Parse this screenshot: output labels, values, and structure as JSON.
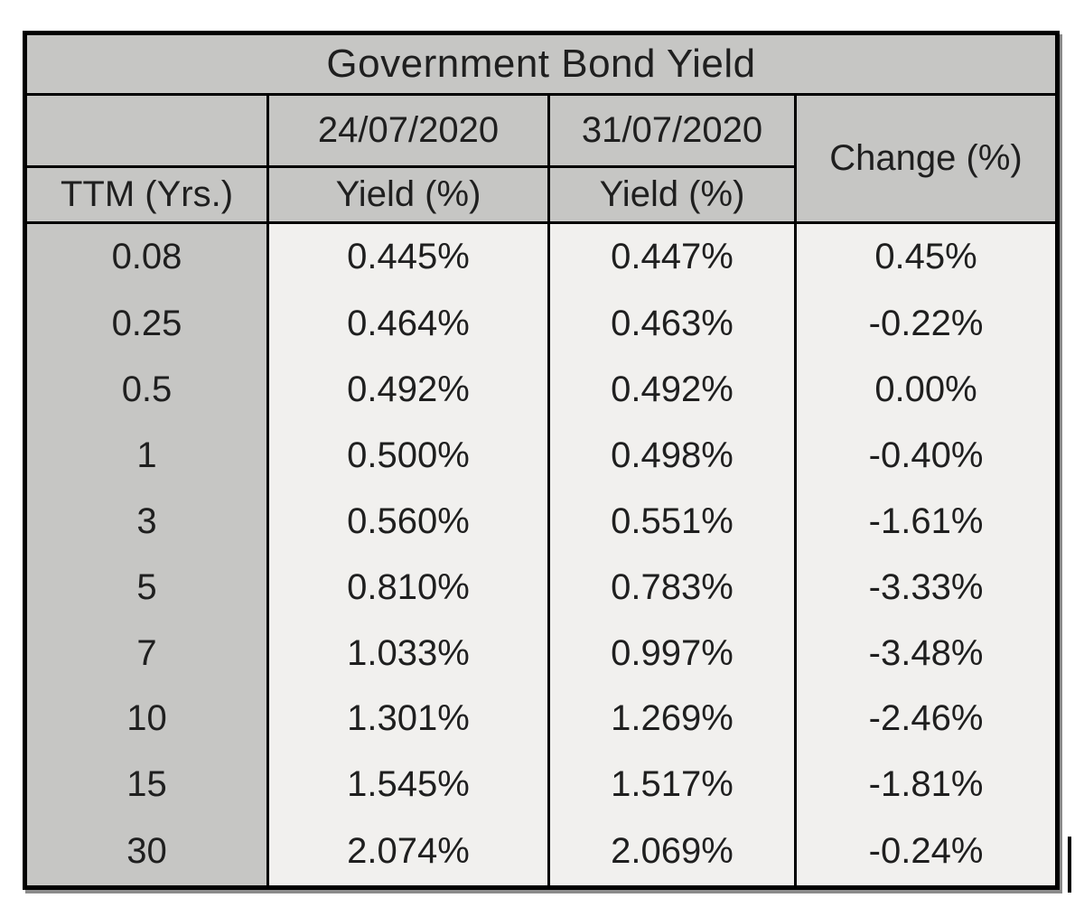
{
  "chart_data": {
    "type": "table",
    "title": "Government Bond Yield",
    "header": {
      "ttm": "TTM (Yrs.)",
      "date_1": "24/07/2020",
      "date_2": "31/07/2020",
      "yield_1": "Yield (%)",
      "yield_2": "Yield (%)",
      "change": "Change (%)"
    },
    "columns": [
      "TTM (Yrs.)",
      "24/07/2020 Yield (%)",
      "31/07/2020 Yield (%)",
      "Change (%)"
    ],
    "rows": [
      [
        "0.08",
        "0.445%",
        "0.447%",
        "0.45%"
      ],
      [
        "0.25",
        "0.464%",
        "0.463%",
        "-0.22%"
      ],
      [
        "0.5",
        "0.492%",
        "0.492%",
        "0.00%"
      ],
      [
        "1",
        "0.500%",
        "0.498%",
        "-0.40%"
      ],
      [
        "3",
        "0.560%",
        "0.551%",
        "-1.61%"
      ],
      [
        "5",
        "0.810%",
        "0.783%",
        "-3.33%"
      ],
      [
        "7",
        "1.033%",
        "0.997%",
        "-3.48%"
      ],
      [
        "10",
        "1.301%",
        "1.269%",
        "-2.46%"
      ],
      [
        "15",
        "1.545%",
        "1.517%",
        "-1.81%"
      ],
      [
        "30",
        "2.074%",
        "2.069%",
        "-0.24%"
      ]
    ],
    "layout": {
      "grid": "vertical-only-in-body",
      "legend": "none"
    },
    "colors": {
      "header_bg": "#c6c6c4",
      "cell_bg": "#f1f0ee",
      "border": "#000000",
      "text": "#1f1f1f",
      "shadow": "#8b8b8b"
    }
  }
}
